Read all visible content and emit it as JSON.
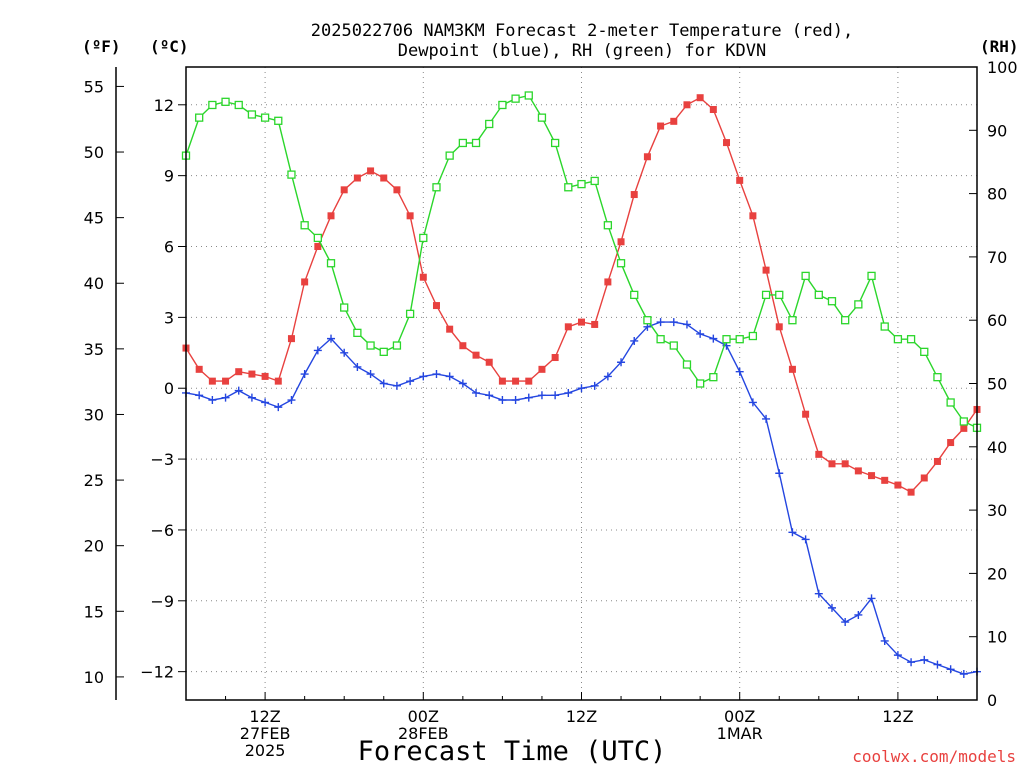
{
  "chart_data": {
    "type": "line",
    "title_line1": "2025022706 NAM3KM Forecast 2-meter Temperature (red),",
    "title_line2": "Dewpoint (blue), RH (green) for KDVN",
    "xlabel": "Forecast Time (UTC)",
    "credit": "coolwx.com/models",
    "units": {
      "fahrenheit": "(ºF)",
      "celsius": "(ºC)",
      "rh": "(RH)"
    },
    "fahrenheit_ticks": [
      "10",
      "15",
      "20",
      "25",
      "30",
      "35",
      "40",
      "45",
      "50",
      "55"
    ],
    "celsius_ticks": [
      "−12",
      "−9",
      "−6",
      "−3",
      "0",
      "3",
      "6",
      "9",
      "12"
    ],
    "rh_ticks": [
      "0",
      "10",
      "20",
      "30",
      "40",
      "50",
      "60",
      "70",
      "80",
      "90",
      "100"
    ],
    "ylim_celsius": [
      -13.2,
      13.6
    ],
    "ylim_rh": [
      0,
      100
    ],
    "x_range_hours": [
      6,
      66
    ],
    "grid": true,
    "x_ticks": [
      {
        "hour": 12,
        "lines": [
          "12Z",
          "27FEB",
          "2025"
        ]
      },
      {
        "hour": 24,
        "lines": [
          "00Z",
          "28FEB"
        ]
      },
      {
        "hour": 36,
        "lines": [
          "12Z"
        ]
      },
      {
        "hour": 48,
        "lines": [
          "00Z",
          "1MAR"
        ]
      },
      {
        "hour": 60,
        "lines": [
          "12Z"
        ]
      }
    ],
    "x": [
      6,
      7,
      8,
      9,
      10,
      11,
      12,
      13,
      14,
      15,
      16,
      17,
      18,
      19,
      20,
      21,
      22,
      23,
      24,
      25,
      26,
      27,
      28,
      29,
      30,
      31,
      32,
      33,
      34,
      35,
      36,
      37,
      38,
      39,
      40,
      41,
      42,
      43,
      44,
      45,
      46,
      47,
      48,
      49,
      50,
      51,
      52,
      53,
      54,
      55,
      56,
      57,
      58,
      59,
      60,
      61,
      62,
      63,
      64,
      65,
      66
    ],
    "series": [
      {
        "name": "Temperature",
        "unit": "C",
        "color": "#e8413f",
        "marker": "filled-square",
        "values": [
          1.7,
          0.8,
          0.3,
          0.3,
          0.7,
          0.6,
          0.5,
          0.3,
          2.1,
          4.5,
          6.0,
          7.3,
          8.4,
          8.9,
          9.2,
          8.9,
          8.4,
          7.3,
          4.7,
          3.5,
          2.5,
          1.8,
          1.4,
          1.1,
          0.3,
          0.3,
          0.3,
          0.8,
          1.3,
          2.6,
          2.8,
          2.7,
          4.5,
          6.2,
          8.2,
          9.8,
          11.1,
          11.3,
          12.0,
          12.3,
          11.8,
          10.4,
          8.8,
          7.3,
          5.0,
          2.6,
          0.8,
          -1.1,
          -2.8,
          -3.2,
          -3.2,
          -3.5,
          -3.7,
          -3.9,
          -4.1,
          -4.4,
          -3.8,
          -3.1,
          -2.3,
          -1.7,
          -0.9
        ]
      },
      {
        "name": "Dewpoint",
        "unit": "C",
        "color": "#2446e0",
        "marker": "plus",
        "values": [
          -0.2,
          -0.3,
          -0.5,
          -0.4,
          -0.1,
          -0.4,
          -0.6,
          -0.8,
          -0.5,
          0.6,
          1.6,
          2.1,
          1.5,
          0.9,
          0.6,
          0.2,
          0.1,
          0.3,
          0.5,
          0.6,
          0.5,
          0.2,
          -0.2,
          -0.3,
          -0.5,
          -0.5,
          -0.4,
          -0.3,
          -0.3,
          -0.2,
          0.0,
          0.1,
          0.5,
          1.1,
          2.0,
          2.6,
          2.8,
          2.8,
          2.7,
          2.3,
          2.1,
          1.8,
          0.7,
          -0.6,
          -1.3,
          -3.6,
          -6.1,
          -6.4,
          -8.7,
          -9.3,
          -9.9,
          -9.6,
          -8.9,
          -10.7,
          -11.3,
          -11.6,
          -11.5,
          -11.7,
          -11.9,
          -12.1,
          -12.0
        ]
      },
      {
        "name": "RH",
        "unit": "%",
        "color": "#2bd62b",
        "marker": "open-square",
        "values": [
          86,
          92,
          94,
          94.5,
          94,
          92.5,
          92,
          91.5,
          83,
          75,
          73,
          69,
          62,
          58,
          56,
          55,
          56,
          61,
          73,
          81,
          86,
          88,
          88,
          91,
          94,
          95,
          95.5,
          92,
          88,
          81,
          81.5,
          82,
          75,
          69,
          64,
          60,
          57,
          56,
          53,
          50,
          51,
          57,
          57,
          57.5,
          64,
          64,
          60,
          67,
          64,
          63,
          60,
          62.5,
          67,
          59,
          57,
          57,
          55,
          51,
          47,
          44,
          43
        ]
      }
    ]
  }
}
